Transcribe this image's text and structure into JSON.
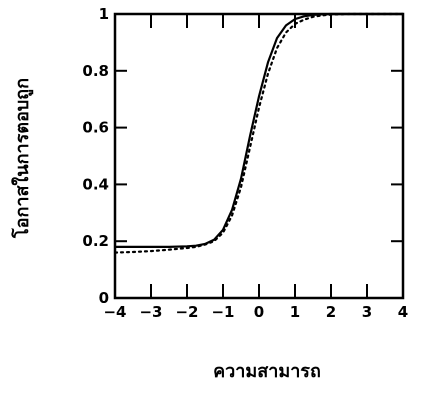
{
  "chart_data": {
    "type": "line",
    "xlabel": "ความสามารถ",
    "ylabel": "โอกาสในการตอบถูก",
    "xlim": [
      -4,
      4
    ],
    "ylim": [
      0,
      1
    ],
    "x_ticks": [
      "−4",
      "−3",
      "−2",
      "−1",
      "0",
      "1",
      "2",
      "3",
      "4"
    ],
    "y_ticks": [
      "0",
      "0.2",
      "0.4",
      "0.6",
      "0.8",
      "1"
    ],
    "grid": false,
    "series": [
      {
        "style": "solid",
        "x": [
          -4,
          -3.5,
          -3,
          -2.5,
          -2,
          -1.75,
          -1.5,
          -1.25,
          -1,
          -0.75,
          -0.5,
          -0.25,
          0,
          0.25,
          0.5,
          0.75,
          1,
          1.25,
          1.5,
          1.75,
          2,
          2.5,
          3,
          3.5,
          4
        ],
        "y": [
          0.18,
          0.18,
          0.18,
          0.18,
          0.182,
          0.184,
          0.19,
          0.205,
          0.24,
          0.31,
          0.42,
          0.57,
          0.71,
          0.83,
          0.915,
          0.96,
          0.982,
          0.992,
          0.997,
          0.999,
          1.0,
          1.0,
          1.0,
          1.0,
          1.0
        ]
      },
      {
        "style": "dotted",
        "x": [
          -4,
          -3.5,
          -3,
          -2.5,
          -2,
          -1.75,
          -1.5,
          -1.25,
          -1,
          -0.75,
          -0.5,
          -0.25,
          0,
          0.25,
          0.5,
          0.75,
          1,
          1.25,
          1.5,
          1.75,
          2,
          2.5,
          3,
          3.5,
          4
        ],
        "y": [
          0.16,
          0.162,
          0.165,
          0.17,
          0.176,
          0.18,
          0.188,
          0.2,
          0.23,
          0.29,
          0.39,
          0.53,
          0.67,
          0.79,
          0.88,
          0.935,
          0.965,
          0.98,
          0.99,
          0.995,
          0.998,
          1.0,
          1.0,
          1.0,
          1.0
        ]
      }
    ]
  }
}
